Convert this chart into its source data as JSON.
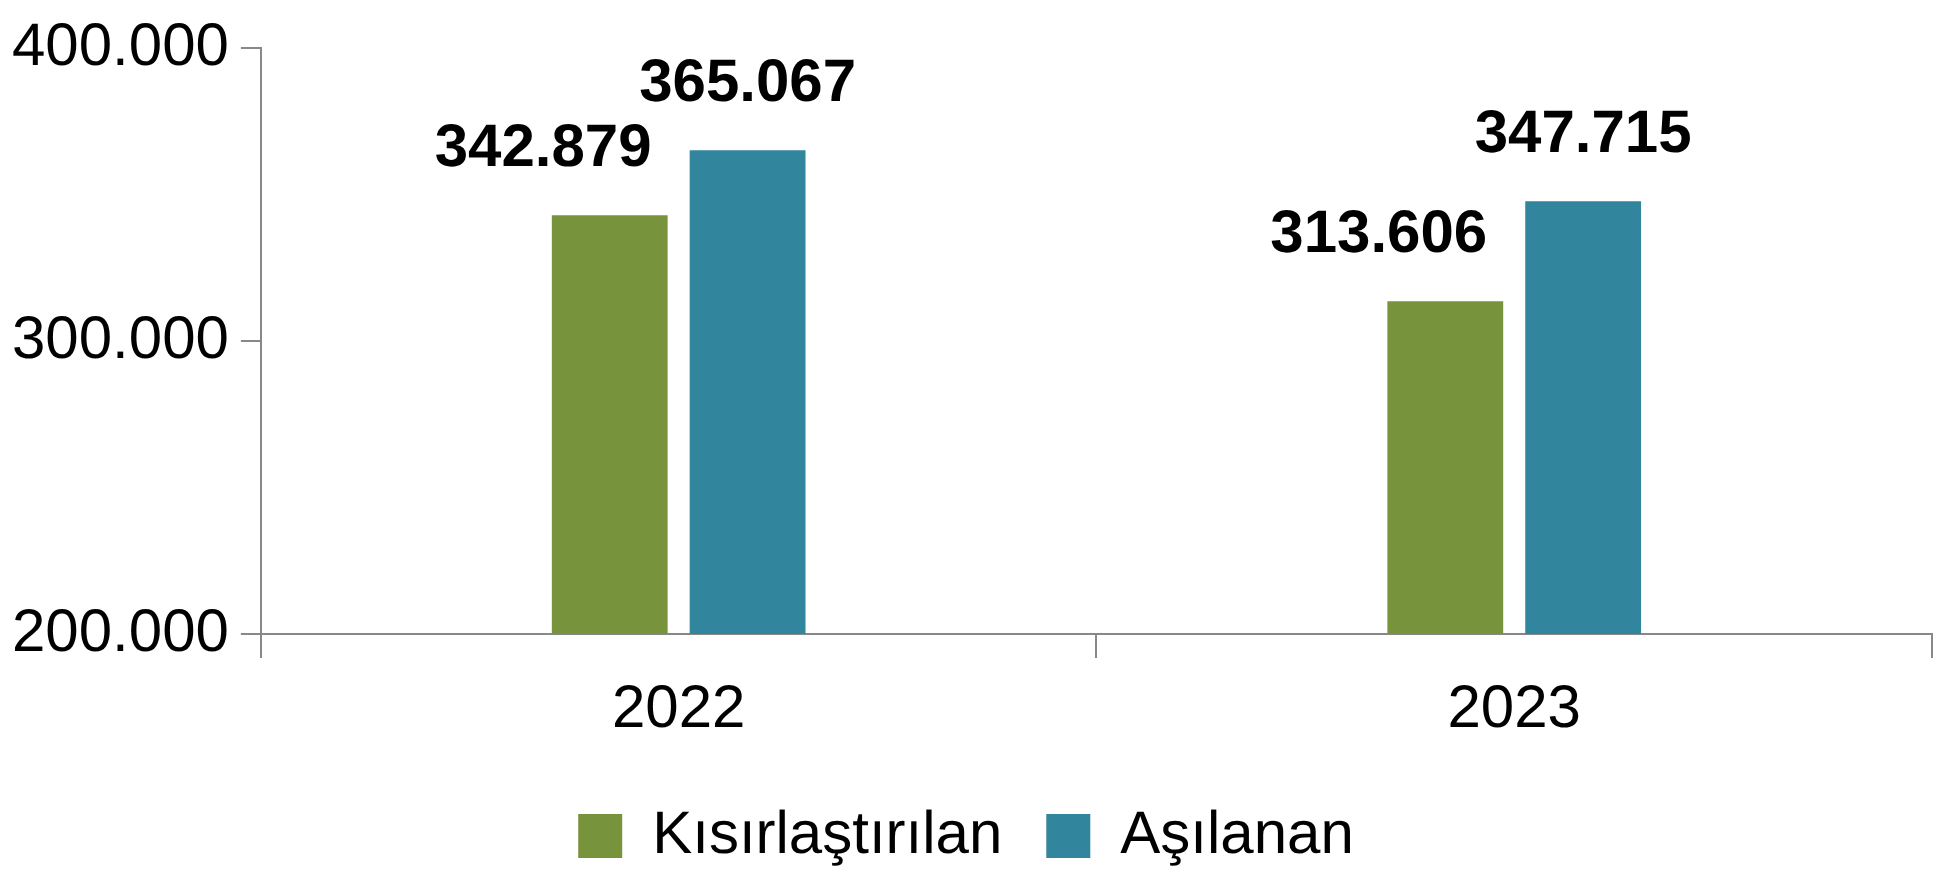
{
  "chart_data": {
    "type": "bar",
    "categories": [
      "2022",
      "2023"
    ],
    "series": [
      {
        "name": "Kısırlaştırılan",
        "color": "#77933c",
        "values": [
          342879,
          313606
        ],
        "value_labels": [
          "342.879",
          "313.606"
        ]
      },
      {
        "name": "Aşılanan",
        "color": "#31859c",
        "values": [
          365067,
          347715
        ],
        "value_labels": [
          "365.067",
          "347.715"
        ]
      }
    ],
    "ylim": [
      200000,
      400000
    ],
    "yticks": [
      {
        "value": 200000,
        "label": "200.000"
      },
      {
        "value": 300000,
        "label": "300.000"
      },
      {
        "value": 400000,
        "label": "400.000"
      }
    ],
    "grid": false,
    "legend": "bottom"
  }
}
